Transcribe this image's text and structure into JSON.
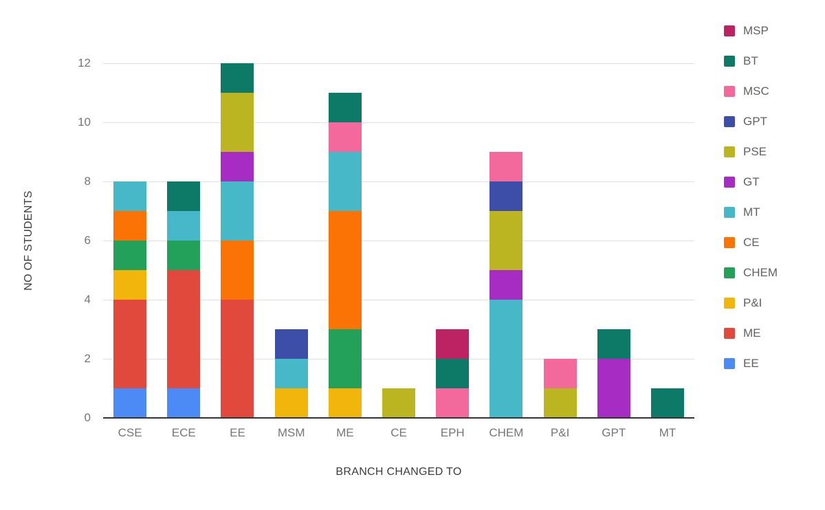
{
  "chart_data": {
    "type": "bar",
    "stacked": true,
    "xlabel": "BRANCH CHANGED TO",
    "ylabel": "NO OF STUDENTS",
    "categories": [
      "CSE",
      "ECE",
      "EE",
      "MSM",
      "ME",
      "CE",
      "EPH",
      "CHEM",
      "P&I",
      "GPT",
      "MT"
    ],
    "y_ticks": [
      0,
      2,
      4,
      6,
      8,
      10,
      12
    ],
    "ylim": [
      0,
      12
    ],
    "grid": true,
    "legend_position": "right",
    "series": [
      {
        "name": "EE",
        "color": "#4c8bf5",
        "values": [
          1,
          1,
          0,
          0,
          0,
          0,
          0,
          0,
          0,
          0,
          0
        ]
      },
      {
        "name": "ME",
        "color": "#e0493b",
        "values": [
          3,
          4,
          4,
          0,
          0,
          0,
          0,
          0,
          0,
          0,
          0
        ]
      },
      {
        "name": "P&I",
        "color": "#f2b50c",
        "values": [
          1,
          0,
          0,
          1,
          1,
          0,
          0,
          0,
          0,
          0,
          0
        ]
      },
      {
        "name": "CHEM",
        "color": "#23a15b",
        "values": [
          1,
          1,
          0,
          0,
          2,
          0,
          0,
          0,
          0,
          0,
          0
        ]
      },
      {
        "name": "CE",
        "color": "#fb7305",
        "values": [
          1,
          0,
          2,
          0,
          4,
          0,
          0,
          0,
          0,
          0,
          0
        ]
      },
      {
        "name": "MT",
        "color": "#47b8c8",
        "values": [
          1,
          1,
          2,
          1,
          2,
          0,
          0,
          4,
          0,
          0,
          0
        ]
      },
      {
        "name": "GT",
        "color": "#a62cc3",
        "values": [
          0,
          0,
          1,
          0,
          0,
          0,
          0,
          1,
          0,
          2,
          0
        ]
      },
      {
        "name": "PSE",
        "color": "#bab521",
        "values": [
          0,
          0,
          2,
          0,
          0,
          1,
          0,
          2,
          1,
          0,
          0
        ]
      },
      {
        "name": "GPT",
        "color": "#3d4ea9",
        "values": [
          0,
          0,
          0,
          1,
          0,
          0,
          0,
          1,
          0,
          0,
          0
        ]
      },
      {
        "name": "MSC",
        "color": "#f4699c",
        "values": [
          0,
          0,
          0,
          0,
          1,
          0,
          1,
          1,
          1,
          0,
          0
        ]
      },
      {
        "name": "BT",
        "color": "#0c7a66",
        "values": [
          0,
          1,
          1,
          0,
          1,
          0,
          1,
          0,
          0,
          1,
          1
        ]
      },
      {
        "name": "MSP",
        "color": "#bd2263",
        "values": [
          0,
          0,
          0,
          0,
          0,
          0,
          1,
          0,
          0,
          0,
          0
        ]
      }
    ],
    "legend_order": [
      "MSP",
      "BT",
      "MSC",
      "GPT",
      "PSE",
      "GT",
      "MT",
      "CE",
      "CHEM",
      "P&I",
      "ME",
      "EE"
    ]
  }
}
